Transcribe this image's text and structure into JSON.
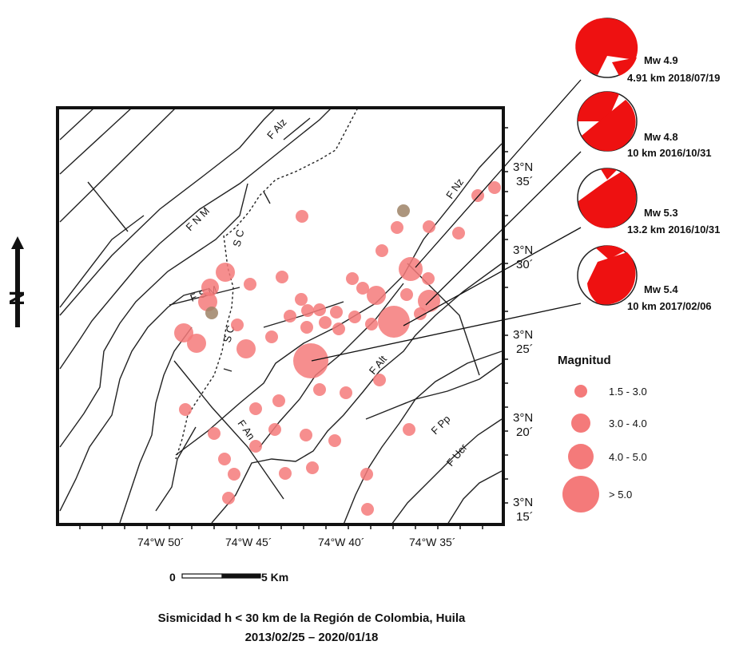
{
  "map": {
    "faults": [
      {
        "id": "fault-fnm",
        "label": "F N M"
      },
      {
        "id": "fault-falz",
        "label": "F Alz"
      },
      {
        "id": "fault-sc-north",
        "label": "S C"
      },
      {
        "id": "fault-sc-south",
        "label": "S C"
      },
      {
        "id": "fault-fsm",
        "label": "F S M"
      },
      {
        "id": "fault-fnz",
        "label": "F Nz"
      },
      {
        "id": "fault-falt",
        "label": "F Alt"
      },
      {
        "id": "fault-fan",
        "label": "F An"
      },
      {
        "id": "fault-fpp",
        "label": "F Pp"
      },
      {
        "id": "fault-fucr",
        "label": "F Ucr"
      }
    ],
    "lat_ticks": [
      {
        "deg": "3°N",
        "min": "35´"
      },
      {
        "deg": "3°N",
        "min": "30´"
      },
      {
        "deg": "3°N",
        "min": "25´"
      },
      {
        "deg": "3°N",
        "min": "20´"
      },
      {
        "deg": "3°N",
        "min": "15´"
      }
    ],
    "lon_ticks": [
      "74°W 50´",
      "74°W 45´",
      "74°W 40´",
      "74°W 35´"
    ],
    "north_label": "N",
    "scale": {
      "zero": "0",
      "end": "5 Km"
    }
  },
  "mechanisms": [
    {
      "magnitude": "Mw 4.9",
      "detail": "4.91 km 2018/07/19"
    },
    {
      "magnitude": "Mw 4.8",
      "detail": "10 km 2016/10/31"
    },
    {
      "magnitude": "Mw 5.3",
      "detail": "13.2 km 2016/10/31"
    },
    {
      "magnitude": "Mw 5.4",
      "detail": "10 km 2017/02/06"
    }
  ],
  "legend": {
    "title": "Magnitud",
    "items": [
      "1.5 - 3.0",
      "3.0 - 4.0",
      "4.0 - 5.0",
      "> 5.0"
    ]
  },
  "caption": {
    "line1": "Sismicidad h < 30 km de la Región de Colombia, Huila",
    "line2": "2013/02/25 – 2020/01/18"
  },
  "colors": {
    "event": "#f47a7a",
    "event_dark": "#9e8266",
    "beachball": "#ee1111"
  }
}
